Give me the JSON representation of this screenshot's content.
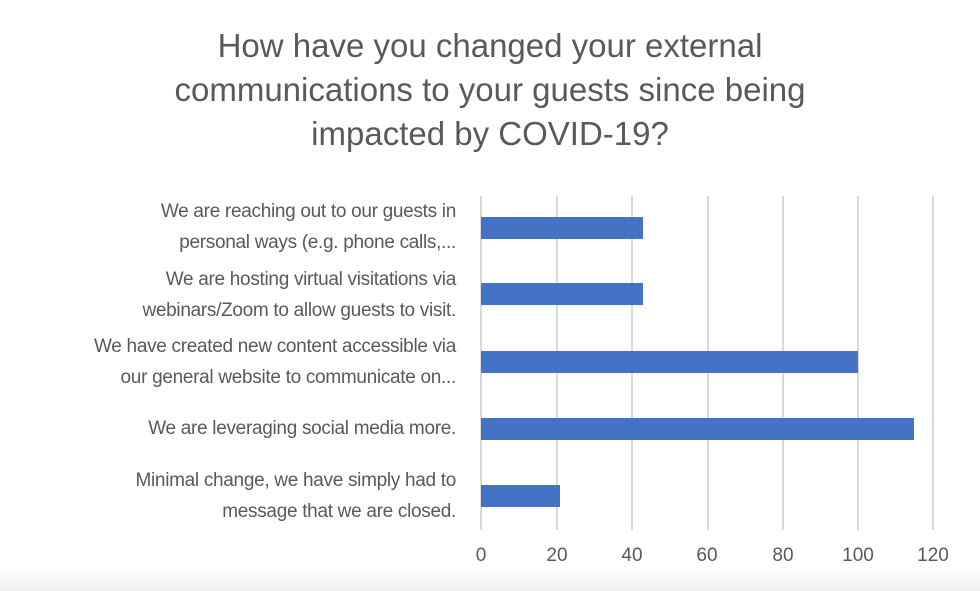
{
  "chart_data": {
    "type": "bar",
    "orientation": "horizontal",
    "title": "How have you changed your external communications to your guests since being impacted by COVID-19?",
    "title_lines": [
      "How have you changed your external",
      "communications to your guests since being",
      "impacted by COVID-19?"
    ],
    "categories": [
      "We are reaching out to our guests in personal ways (e.g. phone calls,...",
      "We are hosting virtual visitations via webinars/Zoom to allow guests to visit.",
      "We have created new content accessible via our general website to communicate on...",
      "We are leveraging social media more.",
      "Minimal change, we have simply had to message that we are closed."
    ],
    "category_lines": [
      [
        "We are reaching out to our guests in",
        "personal ways (e.g. phone calls,..."
      ],
      [
        "We are hosting virtual visitations via",
        "webinars/Zoom to allow guests to visit."
      ],
      [
        "We have created new content accessible via",
        "our general website to communicate on..."
      ],
      [
        "We are leveraging social media more."
      ],
      [
        "Minimal change, we have simply had to",
        "message that we are closed."
      ]
    ],
    "values": [
      43,
      43,
      100,
      115,
      21
    ],
    "xlabel": "",
    "ylabel": "",
    "xlim": [
      0,
      120
    ],
    "x_ticks": [
      "0",
      "20",
      "40",
      "60",
      "80",
      "100",
      "120"
    ],
    "grid": "vertical",
    "legend": "none",
    "bar_color": "#4472c4"
  }
}
